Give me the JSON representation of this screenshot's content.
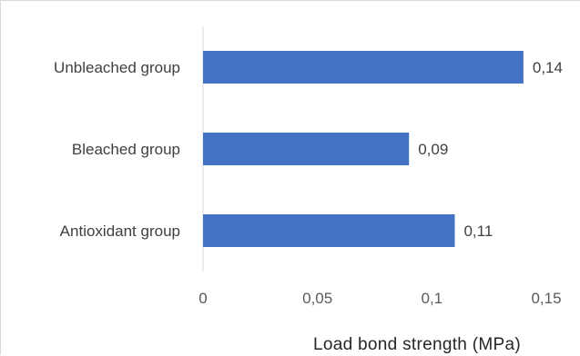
{
  "chart_data": {
    "type": "bar",
    "orientation": "horizontal",
    "categories": [
      "Unbleached group",
      "Bleached group",
      "Antioxidant group"
    ],
    "values": [
      0.14,
      0.09,
      0.11
    ],
    "data_labels": [
      "0,14",
      "0,09",
      "0,11"
    ],
    "xlim": [
      0,
      0.15
    ],
    "x_ticks": [
      0,
      0.05,
      0.1,
      0.15
    ],
    "x_tick_labels": [
      "0",
      "0,05",
      "0,1",
      "0,15"
    ],
    "title": "",
    "xlabel": "Load bond strength (MPa)",
    "ylabel": "",
    "grid": false,
    "legend": "none",
    "bar_color": "#4472C4"
  }
}
